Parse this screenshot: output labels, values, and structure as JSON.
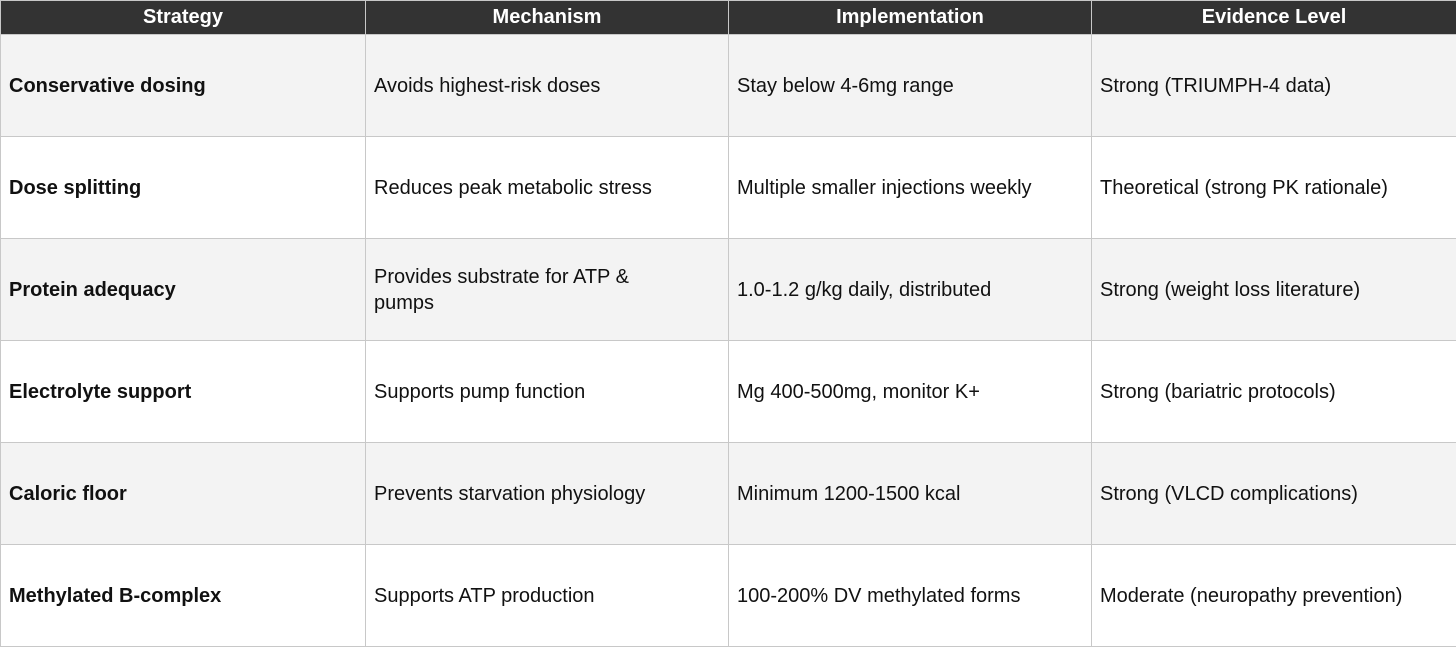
{
  "table": {
    "header": [
      "Strategy",
      "Mechanism",
      "Implementation",
      "Evidence Level"
    ],
    "rows": [
      [
        "Conservative dosing",
        "Avoids highest-risk doses",
        "Stay below 4-6mg range",
        "Strong (TRIUMPH-4 data)"
      ],
      [
        "Dose splitting",
        "Reduces peak metabolic stress",
        "Multiple smaller injections weekly",
        "Theoretical (strong PK rationale)"
      ],
      [
        "Protein adequacy",
        "Provides substrate for ATP & pumps",
        "1.0-1.2 g/kg daily, distributed",
        "Strong (weight loss literature)"
      ],
      [
        "Electrolyte support",
        "Supports pump function",
        "Mg 400-500mg, monitor K+",
        "Strong (bariatric protocols)"
      ],
      [
        "Caloric floor",
        "Prevents starvation physiology",
        "Minimum 1200-1500 kcal",
        "Strong (VLCD complications)"
      ],
      [
        "Methylated B-complex",
        "Supports ATP production",
        "100-200% DV methylated forms",
        "Moderate (neuropathy prevention)"
      ]
    ]
  }
}
